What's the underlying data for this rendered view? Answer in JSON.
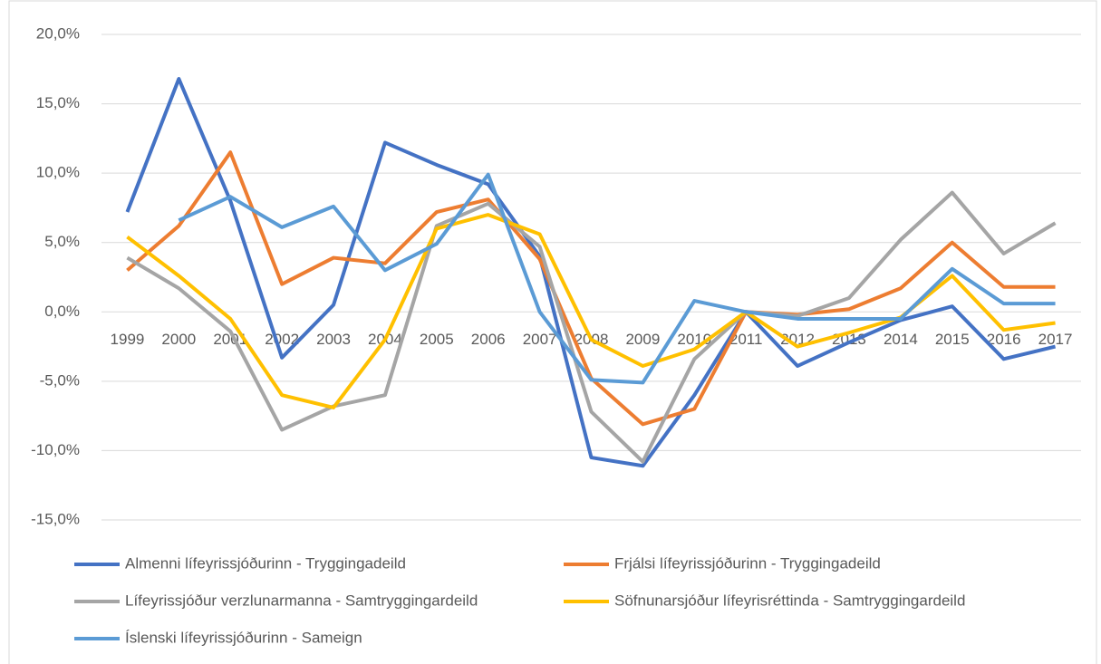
{
  "chart_data": {
    "type": "line",
    "categories": [
      "1999",
      "2000",
      "2001",
      "2002",
      "2003",
      "2004",
      "2005",
      "2006",
      "2007",
      "2008",
      "2009",
      "2010",
      "2011",
      "2012",
      "2013",
      "2014",
      "2015",
      "2016",
      "2017"
    ],
    "series": [
      {
        "name": "Almenni lífeyrissjóðurinn - Tryggingadeild",
        "color": "#4472c4",
        "values": [
          7.2,
          16.8,
          8.0,
          -3.3,
          0.5,
          12.2,
          10.6,
          9.2,
          4.0,
          -10.5,
          -11.1,
          -6.0,
          0.0,
          -3.9,
          -2.2,
          -0.6,
          0.4,
          -3.4,
          -2.5
        ]
      },
      {
        "name": "Frjálsi lífeyrissjóðurinn - Tryggingadeild",
        "color": "#ed7d31",
        "values": [
          3.0,
          6.2,
          11.5,
          2.0,
          3.9,
          3.5,
          7.2,
          8.1,
          3.8,
          -4.8,
          -8.1,
          -7.0,
          0.0,
          -0.2,
          0.2,
          1.7,
          5.0,
          1.8,
          1.8
        ]
      },
      {
        "name": "Lífeyrissjóður verzlunarmanna - Samtryggingardeild",
        "color": "#a5a5a5",
        "values": [
          3.9,
          1.7,
          -1.4,
          -8.5,
          -6.8,
          -6.0,
          6.2,
          7.8,
          4.7,
          -7.2,
          -10.8,
          -3.4,
          0.0,
          -0.3,
          1.0,
          5.2,
          8.6,
          4.2,
          6.4
        ]
      },
      {
        "name": "Söfnunarsjóður lífeyrisréttinda - Samtryggingardeild",
        "color": "#ffc000",
        "values": [
          5.4,
          2.6,
          -0.5,
          -6.0,
          -6.9,
          -2.0,
          6.0,
          7.0,
          5.6,
          -2.0,
          -3.9,
          -2.7,
          0.0,
          -2.5,
          -1.5,
          -0.4,
          2.6,
          -1.3,
          -0.8
        ]
      },
      {
        "name": "Íslenski lífeyrissjóðurinn - Sameign",
        "color": "#5b9bd5",
        "values": [
          null,
          6.6,
          8.3,
          6.1,
          7.6,
          3.0,
          4.9,
          9.9,
          0.0,
          -4.9,
          -5.1,
          0.8,
          0.0,
          -0.5,
          -0.5,
          -0.5,
          3.1,
          0.6,
          0.6
        ]
      }
    ],
    "ylim": [
      -15,
      20
    ],
    "yticks": [
      {
        "value": -15,
        "label": "-15,0%"
      },
      {
        "value": -10,
        "label": "-10,0%"
      },
      {
        "value": -5,
        "label": "-5,0%"
      },
      {
        "value": 0,
        "label": "0,0%"
      },
      {
        "value": 5,
        "label": "5,0%"
      },
      {
        "value": 10,
        "label": "10,0%"
      },
      {
        "value": 15,
        "label": "15,0%"
      },
      {
        "value": 20,
        "label": "20,0%"
      }
    ],
    "grid": true
  }
}
